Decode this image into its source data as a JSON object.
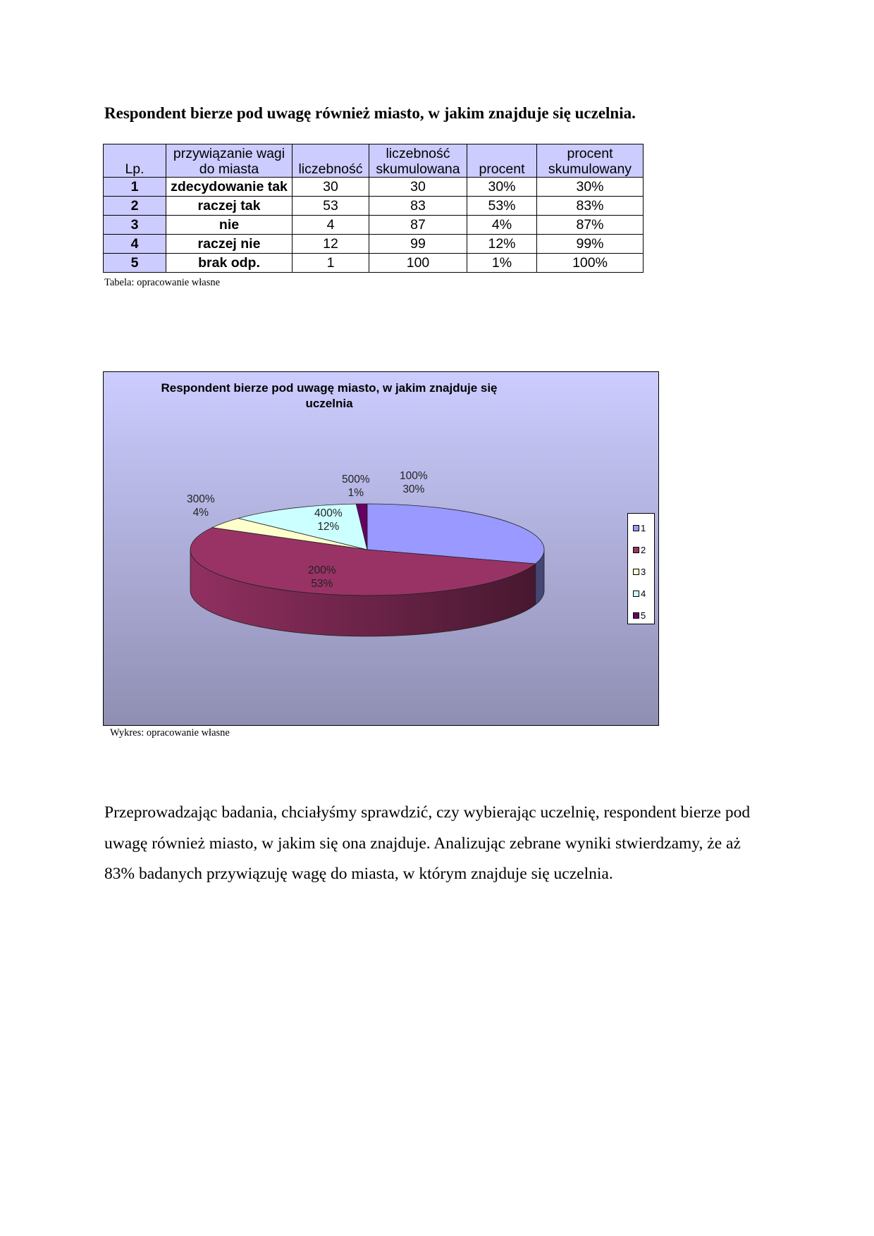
{
  "heading": "Respondent bierze pod uwagę również miasto, w jakim znajduje się uczelnia.",
  "table": {
    "headers": [
      "Lp.",
      "przywiązanie wagi do miasta",
      "liczebność",
      "liczebność skumulowana",
      "procent",
      "procent skumulowany"
    ],
    "rows": [
      [
        "1",
        "zdecydowanie tak",
        "30",
        "30",
        "30%",
        "30%"
      ],
      [
        "2",
        "raczej tak",
        "53",
        "83",
        "53%",
        "83%"
      ],
      [
        "3",
        "nie",
        "4",
        "87",
        "4%",
        "87%"
      ],
      [
        "4",
        "raczej nie",
        "12",
        "99",
        "12%",
        "99%"
      ],
      [
        "5",
        "brak odp.",
        "1",
        "100",
        "1%",
        "100%"
      ]
    ],
    "caption": "Tabela: opracowanie własne"
  },
  "chart_data": {
    "type": "pie",
    "title": "Respondent bierze pod uwagę miasto, w jakim znajduje się uczelnia",
    "categories": [
      "1",
      "2",
      "3",
      "4",
      "5"
    ],
    "values": [
      30,
      53,
      4,
      12,
      1
    ],
    "data_labels": [
      [
        "100%",
        "30%"
      ],
      [
        "200%",
        "53%"
      ],
      [
        "300%",
        "4%"
      ],
      [
        "400%",
        "12%"
      ],
      [
        "500%",
        "1%"
      ]
    ],
    "colors": [
      "#9999ff",
      "#993366",
      "#ffffcc",
      "#ccffff",
      "#660066"
    ],
    "legend": "right",
    "style": "3d"
  },
  "chart_caption": "Wykres: opracowanie własne",
  "paragraph": "Przeprowadzając badania, chciałyśmy sprawdzić, czy wybierając uczelnię, respondent bierze pod uwagę również miasto, w jakim się ona znajduje. Analizując zebrane wyniki stwierdzamy, że aż 83% badanych przywiązuję wagę do miasta, w którym znajduje się uczelnia."
}
